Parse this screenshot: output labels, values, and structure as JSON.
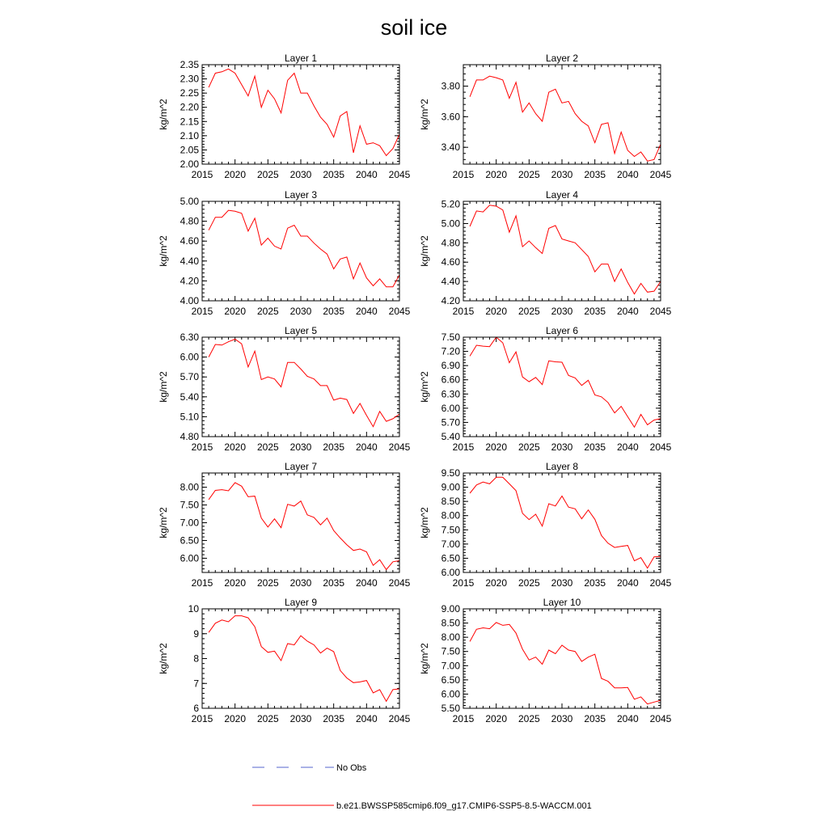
{
  "title": "soil ice",
  "colors": {
    "model": "#ff0000",
    "obs": "#5566cc",
    "axis": "#000000"
  },
  "legend": {
    "obs_label": "No Obs",
    "model_label": "b.e21.BWSSP585cmip6.f09_g17.CMIP6-SSP5-8.5-WACCM.001"
  },
  "chart_data": [
    {
      "type": "line",
      "title": "Layer 1",
      "xlabel": "",
      "ylabel": "kg/m^2",
      "xlim": [
        2015,
        2045
      ],
      "xticks": [
        "2015",
        "2020",
        "2025",
        "2030",
        "2035",
        "2040",
        "2045"
      ],
      "ylim": [
        2.0,
        2.35
      ],
      "yticks": [
        "2.00",
        "2.05",
        "2.10",
        "2.15",
        "2.20",
        "2.25",
        "2.30",
        "2.35"
      ],
      "x": [
        2016,
        2017,
        2018,
        2019,
        2020,
        2021,
        2022,
        2023,
        2024,
        2025,
        2026,
        2027,
        2028,
        2029,
        2030,
        2031,
        2032,
        2033,
        2034,
        2035,
        2036,
        2037,
        2038,
        2039,
        2040,
        2041,
        2042,
        2043,
        2044,
        2045
      ],
      "values": [
        2.27,
        2.32,
        2.325,
        2.335,
        2.32,
        2.28,
        2.24,
        2.31,
        2.2,
        2.26,
        2.23,
        2.18,
        2.295,
        2.32,
        2.25,
        2.25,
        2.205,
        2.165,
        2.14,
        2.095,
        2.17,
        2.185,
        2.04,
        2.135,
        2.07,
        2.075,
        2.065,
        2.03,
        2.055,
        2.105
      ]
    },
    {
      "type": "line",
      "title": "Layer 2",
      "xlabel": "",
      "ylabel": "kg/m^2",
      "xlim": [
        2015,
        2045
      ],
      "xticks": [
        "2015",
        "2020",
        "2025",
        "2030",
        "2035",
        "2040",
        "2045"
      ],
      "ylim": [
        3.29,
        3.94
      ],
      "yticks": [
        "3.40",
        "3.60",
        "3.80"
      ],
      "x": [
        2016,
        2017,
        2018,
        2019,
        2020,
        2021,
        2022,
        2023,
        2024,
        2025,
        2026,
        2027,
        2028,
        2029,
        2030,
        2031,
        2032,
        2033,
        2034,
        2035,
        2036,
        2037,
        2038,
        2039,
        2040,
        2041,
        2042,
        2043,
        2044,
        2045
      ],
      "values": [
        3.73,
        3.84,
        3.84,
        3.865,
        3.855,
        3.84,
        3.72,
        3.825,
        3.63,
        3.69,
        3.62,
        3.57,
        3.76,
        3.78,
        3.69,
        3.7,
        3.62,
        3.57,
        3.54,
        3.43,
        3.55,
        3.56,
        3.36,
        3.5,
        3.38,
        3.34,
        3.37,
        3.31,
        3.32,
        3.42
      ]
    },
    {
      "type": "line",
      "title": "Layer 3",
      "xlabel": "",
      "ylabel": "kg/m^2",
      "xlim": [
        2015,
        2045
      ],
      "xticks": [
        "2015",
        "2020",
        "2025",
        "2030",
        "2035",
        "2040",
        "2045"
      ],
      "ylim": [
        4.0,
        5.0
      ],
      "yticks": [
        "4.00",
        "4.20",
        "4.40",
        "4.60",
        "4.80",
        "5.00"
      ],
      "x": [
        2016,
        2017,
        2018,
        2019,
        2020,
        2021,
        2022,
        2023,
        2024,
        2025,
        2026,
        2027,
        2028,
        2029,
        2030,
        2031,
        2032,
        2033,
        2034,
        2035,
        2036,
        2037,
        2038,
        2039,
        2040,
        2041,
        2042,
        2043,
        2044,
        2045
      ],
      "values": [
        4.71,
        4.84,
        4.84,
        4.91,
        4.9,
        4.88,
        4.7,
        4.83,
        4.56,
        4.63,
        4.55,
        4.52,
        4.73,
        4.76,
        4.65,
        4.65,
        4.58,
        4.52,
        4.47,
        4.32,
        4.42,
        4.44,
        4.22,
        4.38,
        4.23,
        4.15,
        4.22,
        4.14,
        4.14,
        4.26
      ]
    },
    {
      "type": "line",
      "title": "Layer 4",
      "xlabel": "",
      "ylabel": "kg/m^2",
      "xlim": [
        2015,
        2045
      ],
      "xticks": [
        "2015",
        "2020",
        "2025",
        "2030",
        "2035",
        "2040",
        "2045"
      ],
      "ylim": [
        4.2,
        5.23
      ],
      "yticks": [
        "4.20",
        "4.40",
        "4.60",
        "4.80",
        "5.00",
        "5.20"
      ],
      "x": [
        2016,
        2017,
        2018,
        2019,
        2020,
        2021,
        2022,
        2023,
        2024,
        2025,
        2026,
        2027,
        2028,
        2029,
        2030,
        2031,
        2032,
        2033,
        2034,
        2035,
        2036,
        2037,
        2038,
        2039,
        2040,
        2041,
        2042,
        2043,
        2044,
        2045
      ],
      "values": [
        4.97,
        5.13,
        5.12,
        5.19,
        5.18,
        5.14,
        4.91,
        5.08,
        4.76,
        4.82,
        4.75,
        4.69,
        4.95,
        4.98,
        4.84,
        4.82,
        4.8,
        4.73,
        4.66,
        4.5,
        4.58,
        4.58,
        4.4,
        4.53,
        4.39,
        4.27,
        4.38,
        4.29,
        4.3,
        4.4
      ]
    },
    {
      "type": "line",
      "title": "Layer 5",
      "xlabel": "",
      "ylabel": "kg/m^2",
      "xlim": [
        2015,
        2045
      ],
      "xticks": [
        "2015",
        "2020",
        "2025",
        "2030",
        "2035",
        "2040",
        "2045"
      ],
      "ylim": [
        4.8,
        6.3
      ],
      "yticks": [
        "4.80",
        "5.10",
        "5.40",
        "5.70",
        "6.00",
        "6.30"
      ],
      "x": [
        2016,
        2017,
        2018,
        2019,
        2020,
        2021,
        2022,
        2023,
        2024,
        2025,
        2026,
        2027,
        2028,
        2029,
        2030,
        2031,
        2032,
        2033,
        2034,
        2035,
        2036,
        2037,
        2038,
        2039,
        2040,
        2041,
        2042,
        2043,
        2044,
        2045
      ],
      "values": [
        6.0,
        6.19,
        6.18,
        6.23,
        6.27,
        6.2,
        5.85,
        6.09,
        5.66,
        5.7,
        5.67,
        5.55,
        5.92,
        5.92,
        5.82,
        5.71,
        5.67,
        5.57,
        5.57,
        5.35,
        5.38,
        5.36,
        5.15,
        5.3,
        5.12,
        4.95,
        5.18,
        5.03,
        5.07,
        5.14
      ]
    },
    {
      "type": "line",
      "title": "Layer 6",
      "xlabel": "",
      "ylabel": "kg/m^2",
      "xlim": [
        2015,
        2045
      ],
      "xticks": [
        "2015",
        "2020",
        "2025",
        "2030",
        "2035",
        "2040",
        "2045"
      ],
      "ylim": [
        5.4,
        7.5
      ],
      "yticks": [
        "5.40",
        "5.70",
        "6.00",
        "6.30",
        "6.60",
        "6.90",
        "7.20",
        "7.50"
      ],
      "x": [
        2016,
        2017,
        2018,
        2019,
        2020,
        2021,
        2022,
        2023,
        2024,
        2025,
        2026,
        2027,
        2028,
        2029,
        2030,
        2031,
        2032,
        2033,
        2034,
        2035,
        2036,
        2037,
        2038,
        2039,
        2040,
        2041,
        2042,
        2043,
        2044,
        2045
      ],
      "values": [
        7.1,
        7.33,
        7.31,
        7.3,
        7.5,
        7.38,
        6.96,
        7.19,
        6.66,
        6.56,
        6.65,
        6.5,
        7.0,
        6.98,
        6.97,
        6.69,
        6.64,
        6.48,
        6.59,
        6.28,
        6.24,
        6.12,
        5.9,
        6.04,
        5.82,
        5.6,
        5.87,
        5.65,
        5.75,
        5.78
      ]
    },
    {
      "type": "line",
      "title": "Layer 7",
      "xlabel": "",
      "ylabel": "kg/m^2",
      "xlim": [
        2015,
        2045
      ],
      "xticks": [
        "2015",
        "2020",
        "2025",
        "2030",
        "2035",
        "2040",
        "2045"
      ],
      "ylim": [
        5.6,
        8.4
      ],
      "yticks": [
        "6.00",
        "6.50",
        "7.00",
        "7.50",
        "8.00"
      ],
      "x": [
        2016,
        2017,
        2018,
        2019,
        2020,
        2021,
        2022,
        2023,
        2024,
        2025,
        2026,
        2027,
        2028,
        2029,
        2030,
        2031,
        2032,
        2033,
        2034,
        2035,
        2036,
        2037,
        2038,
        2039,
        2040,
        2041,
        2042,
        2043,
        2044,
        2045
      ],
      "values": [
        7.65,
        7.91,
        7.93,
        7.9,
        8.13,
        8.03,
        7.73,
        7.75,
        7.13,
        6.88,
        7.11,
        6.86,
        7.52,
        7.47,
        7.61,
        7.22,
        7.15,
        6.94,
        7.13,
        6.78,
        6.57,
        6.38,
        6.22,
        6.26,
        6.18,
        5.8,
        5.96,
        5.68,
        5.9,
        5.93
      ]
    },
    {
      "type": "line",
      "title": "Layer 8",
      "xlabel": "",
      "ylabel": "kg/m^2",
      "xlim": [
        2015,
        2045
      ],
      "xticks": [
        "2015",
        "2020",
        "2025",
        "2030",
        "2035",
        "2040",
        "2045"
      ],
      "ylim": [
        6.0,
        9.5
      ],
      "yticks": [
        "6.00",
        "6.50",
        "7.00",
        "7.50",
        "8.00",
        "8.50",
        "9.00",
        "9.50"
      ],
      "x": [
        2016,
        2017,
        2018,
        2019,
        2020,
        2021,
        2022,
        2023,
        2024,
        2025,
        2026,
        2027,
        2028,
        2029,
        2030,
        2031,
        2032,
        2033,
        2034,
        2035,
        2036,
        2037,
        2038,
        2039,
        2040,
        2041,
        2042,
        2043,
        2044,
        2045
      ],
      "values": [
        8.79,
        9.08,
        9.18,
        9.12,
        9.35,
        9.35,
        9.12,
        8.88,
        8.08,
        7.86,
        8.05,
        7.63,
        8.42,
        8.34,
        8.69,
        8.3,
        8.24,
        7.89,
        8.2,
        7.87,
        7.3,
        7.03,
        6.88,
        6.92,
        6.95,
        6.41,
        6.52,
        6.15,
        6.55,
        6.56
      ]
    },
    {
      "type": "line",
      "title": "Layer 9",
      "xlabel": "",
      "ylabel": "kg/m^2",
      "xlim": [
        2015,
        2045
      ],
      "xticks": [
        "2015",
        "2020",
        "2025",
        "2030",
        "2035",
        "2040",
        "2045"
      ],
      "ylim": [
        6,
        10
      ],
      "yticks": [
        "6",
        "7",
        "8",
        "9",
        "10"
      ],
      "x": [
        2016,
        2017,
        2018,
        2019,
        2020,
        2021,
        2022,
        2023,
        2024,
        2025,
        2026,
        2027,
        2028,
        2029,
        2030,
        2031,
        2032,
        2033,
        2034,
        2035,
        2036,
        2037,
        2038,
        2039,
        2040,
        2041,
        2042,
        2043,
        2044,
        2045
      ],
      "values": [
        9.05,
        9.42,
        9.55,
        9.48,
        9.72,
        9.72,
        9.64,
        9.28,
        8.48,
        8.25,
        8.3,
        7.92,
        8.6,
        8.55,
        8.92,
        8.7,
        8.55,
        8.22,
        8.42,
        8.28,
        7.52,
        7.22,
        7.03,
        7.06,
        7.12,
        6.62,
        6.75,
        6.28,
        6.75,
        6.78
      ]
    },
    {
      "type": "line",
      "title": "Layer 10",
      "xlabel": "",
      "ylabel": "kg/m^2",
      "xlim": [
        2015,
        2045
      ],
      "xticks": [
        "2015",
        "2020",
        "2025",
        "2030",
        "2035",
        "2040",
        "2045"
      ],
      "ylim": [
        5.5,
        9.0
      ],
      "yticks": [
        "5.50",
        "6.00",
        "6.50",
        "7.00",
        "7.50",
        "8.00",
        "8.50",
        "9.00"
      ],
      "x": [
        2016,
        2017,
        2018,
        2019,
        2020,
        2021,
        2022,
        2023,
        2024,
        2025,
        2026,
        2027,
        2028,
        2029,
        2030,
        2031,
        2032,
        2033,
        2034,
        2035,
        2036,
        2037,
        2038,
        2039,
        2040,
        2041,
        2042,
        2043,
        2044,
        2045
      ],
      "values": [
        7.85,
        8.28,
        8.33,
        8.3,
        8.52,
        8.42,
        8.45,
        8.15,
        7.58,
        7.2,
        7.3,
        7.05,
        7.55,
        7.42,
        7.72,
        7.55,
        7.5,
        7.15,
        7.3,
        7.4,
        6.55,
        6.45,
        6.22,
        6.22,
        6.23,
        5.82,
        5.9,
        5.65,
        5.72,
        5.78
      ]
    }
  ]
}
